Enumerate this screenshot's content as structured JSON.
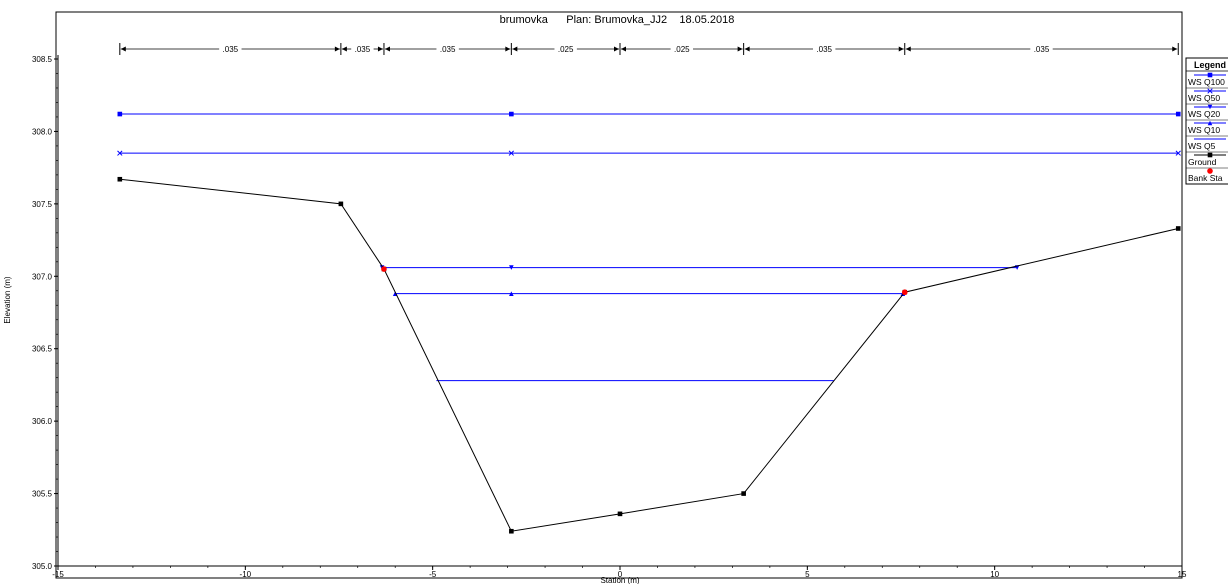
{
  "chart_data": {
    "type": "line",
    "title": "brumovka      Plan: Brumovka_JJ2    18.05.2018",
    "xlabel": "Station (m)",
    "ylabel": "Elevation (m)",
    "xlim": [
      -15,
      15
    ],
    "ylim": [
      305.0,
      308.5
    ],
    "x_ticks": [
      -15,
      -10,
      -5,
      0,
      5,
      10,
      15
    ],
    "x_tick_labels": [
      "-15",
      "-10",
      "-5",
      "0",
      "5",
      "10",
      "15"
    ],
    "y_ticks": [
      305.0,
      305.5,
      306.0,
      306.5,
      307.0,
      307.5,
      308.0,
      308.5
    ],
    "y_tick_labels": [
      "305.0",
      "305.5",
      "306.0",
      "306.5",
      "307.0",
      "307.5",
      "308.0",
      "308.5"
    ],
    "grid": false,
    "legend": {
      "title": "Legend",
      "placement": "right",
      "entries": [
        "WS Q100",
        "WS Q50",
        "WS Q20",
        "WS Q10",
        "WS Q5",
        "Ground",
        "Bank Sta"
      ]
    },
    "mannings_n": [
      {
        "from": -13.35,
        "to": -7.45,
        "value": ".035"
      },
      {
        "from": -7.45,
        "to": -6.3,
        "value": ".035"
      },
      {
        "from": -6.3,
        "to": -2.9,
        "value": ".035"
      },
      {
        "from": -2.9,
        "to": 0.0,
        "value": ".025"
      },
      {
        "from": 0.0,
        "to": 3.3,
        "value": ".025"
      },
      {
        "from": 3.3,
        "to": 7.6,
        "value": ".035"
      },
      {
        "from": 7.6,
        "to": 14.9,
        "value": ".035"
      }
    ],
    "series": [
      {
        "name": "WS Q100",
        "color": "#0000ff",
        "marker": "square",
        "x": [
          -13.35,
          -2.9,
          14.9
        ],
        "y": [
          308.12,
          308.12,
          308.12
        ]
      },
      {
        "name": "WS Q50",
        "color": "#0000ff",
        "marker": "x",
        "x": [
          -13.35,
          -2.9,
          14.9
        ],
        "y": [
          307.85,
          307.85,
          307.85
        ]
      },
      {
        "name": "WS Q20",
        "color": "#0000ff",
        "marker": "triangle-down",
        "x": [
          -6.35,
          -2.9,
          10.6
        ],
        "y": [
          307.06,
          307.06,
          307.06
        ]
      },
      {
        "name": "WS Q10",
        "color": "#0000ff",
        "marker": "triangle-up",
        "x": [
          -6.0,
          -2.9,
          7.55
        ],
        "y": [
          306.88,
          306.88,
          306.88
        ]
      },
      {
        "name": "WS Q5",
        "color": "#0000ff",
        "marker": "none",
        "x": [
          -4.9,
          5.7
        ],
        "y": [
          306.28,
          306.28
        ]
      },
      {
        "name": "Ground",
        "color": "#000000",
        "marker": "square",
        "x": [
          -13.35,
          -7.45,
          -6.3,
          -2.9,
          0.0,
          3.3,
          7.6,
          14.9
        ],
        "y": [
          307.67,
          307.5,
          307.05,
          305.24,
          305.36,
          305.5,
          306.89,
          307.33
        ]
      },
      {
        "name": "Bank Sta",
        "color": "#ff0000",
        "marker": "circle",
        "x": [
          -6.3,
          7.6
        ],
        "y": [
          307.05,
          306.89
        ]
      }
    ]
  }
}
